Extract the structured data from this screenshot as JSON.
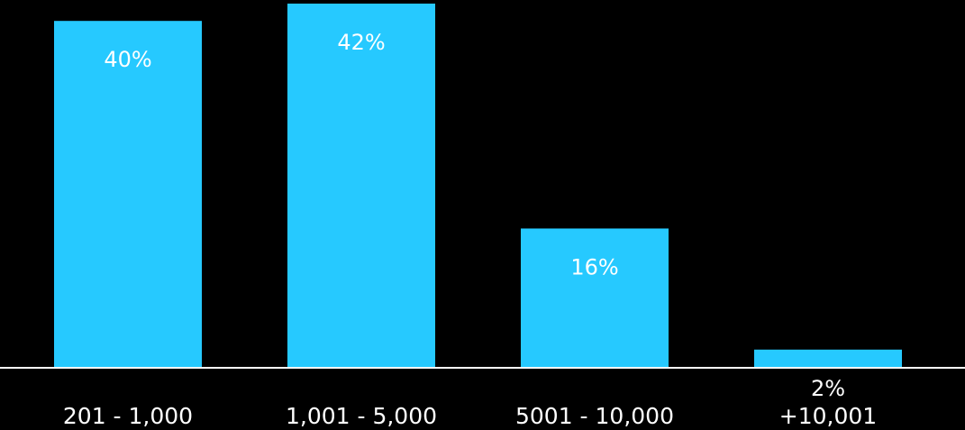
{
  "chart_data": {
    "type": "bar",
    "categories": [
      "201 - 1,000",
      "1,001 - 5,000",
      "5001  - 10,000",
      "+10,001"
    ],
    "values": [
      40,
      42,
      16,
      2
    ],
    "data_labels": [
      "40%",
      "42%",
      "16%",
      "2%"
    ],
    "title": "",
    "xlabel": "",
    "ylabel": "",
    "ylim": [
      0,
      42
    ],
    "grid": false,
    "legend": "none"
  },
  "colors": {
    "background": "#000000",
    "bar": "#26c9ff",
    "axis": "#ffffff",
    "text": "#ffffff"
  }
}
